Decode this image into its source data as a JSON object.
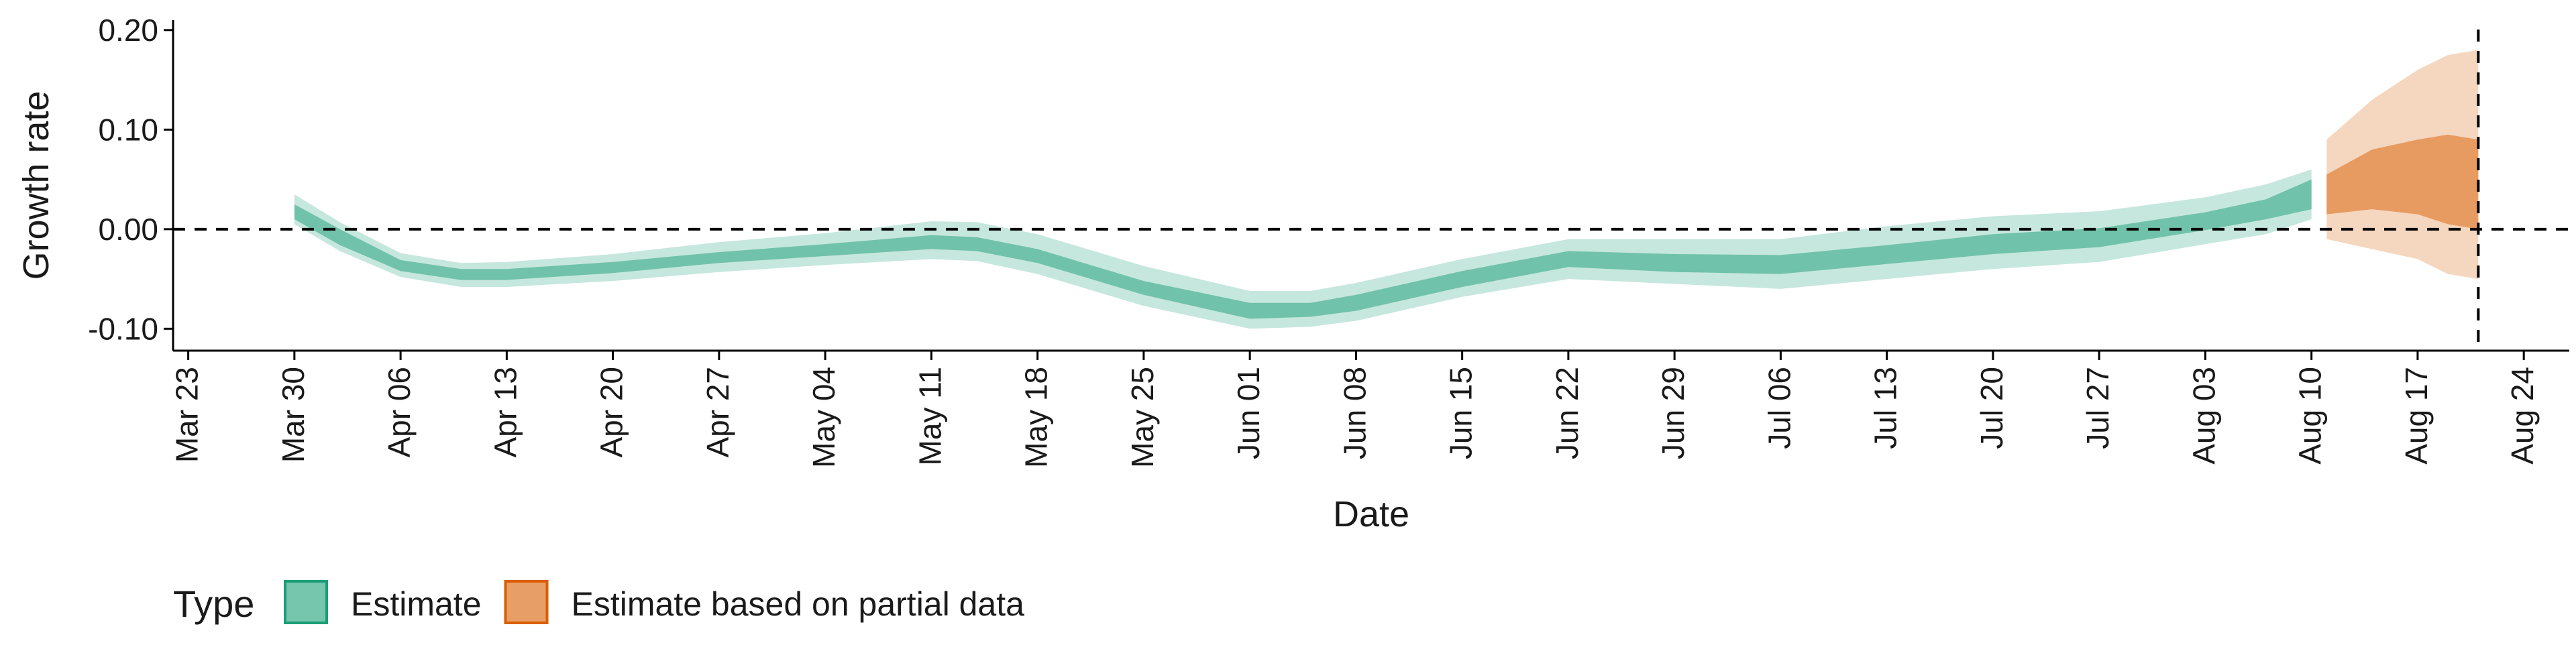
{
  "chart_data": {
    "type": "area",
    "xlabel": "Date",
    "ylabel": "Growth rate",
    "xlim": [
      "2020-03-22",
      "2020-08-27"
    ],
    "ylim": [
      -0.122,
      0.21
    ],
    "y_ticks": [
      {
        "value": 0.2,
        "label": "0.20"
      },
      {
        "value": 0.1,
        "label": "0.10"
      },
      {
        "value": 0.0,
        "label": "0.00"
      },
      {
        "value": -0.1,
        "label": "-0.10"
      }
    ],
    "x_ticks": [
      {
        "date": "2020-03-23",
        "label": "Mar 23"
      },
      {
        "date": "2020-03-30",
        "label": "Mar 30"
      },
      {
        "date": "2020-04-06",
        "label": "Apr 06"
      },
      {
        "date": "2020-04-13",
        "label": "Apr 13"
      },
      {
        "date": "2020-04-20",
        "label": "Apr 20"
      },
      {
        "date": "2020-04-27",
        "label": "Apr 27"
      },
      {
        "date": "2020-05-04",
        "label": "May 04"
      },
      {
        "date": "2020-05-11",
        "label": "May 11"
      },
      {
        "date": "2020-05-18",
        "label": "May 18"
      },
      {
        "date": "2020-05-25",
        "label": "May 25"
      },
      {
        "date": "2020-06-01",
        "label": "Jun 01"
      },
      {
        "date": "2020-06-08",
        "label": "Jun 08"
      },
      {
        "date": "2020-06-15",
        "label": "Jun 15"
      },
      {
        "date": "2020-06-22",
        "label": "Jun 22"
      },
      {
        "date": "2020-06-29",
        "label": "Jun 29"
      },
      {
        "date": "2020-07-06",
        "label": "Jul 06"
      },
      {
        "date": "2020-07-13",
        "label": "Jul 13"
      },
      {
        "date": "2020-07-20",
        "label": "Jul 20"
      },
      {
        "date": "2020-07-27",
        "label": "Jul 27"
      },
      {
        "date": "2020-08-03",
        "label": "Aug 03"
      },
      {
        "date": "2020-08-10",
        "label": "Aug 10"
      },
      {
        "date": "2020-08-17",
        "label": "Aug 17"
      },
      {
        "date": "2020-08-24",
        "label": "Aug 24"
      }
    ],
    "reference_lines": {
      "horizontal_y": 0.0,
      "vertical_date": "2020-08-21"
    },
    "grid": false,
    "legend": {
      "title": "Type",
      "position": "bottom-left",
      "items": [
        {
          "label": "Estimate",
          "color": "#1b9e77"
        },
        {
          "label": "Estimate based on partial data",
          "color": "#d95f02"
        }
      ]
    },
    "series": [
      {
        "name": "Estimate",
        "color": "#1b9e77",
        "points": [
          {
            "date": "2020-03-30",
            "outer": [
              0.005,
              0.035
            ],
            "inner": [
              0.01,
              0.025
            ]
          },
          {
            "date": "2020-04-02",
            "outer": [
              -0.022,
              0.007
            ],
            "inner": [
              -0.016,
              0.0
            ]
          },
          {
            "date": "2020-04-06",
            "outer": [
              -0.048,
              -0.024
            ],
            "inner": [
              -0.042,
              -0.031
            ]
          },
          {
            "date": "2020-04-10",
            "outer": [
              -0.058,
              -0.034
            ],
            "inner": [
              -0.051,
              -0.04
            ]
          },
          {
            "date": "2020-04-13",
            "outer": [
              -0.058,
              -0.033
            ],
            "inner": [
              -0.051,
              -0.04
            ]
          },
          {
            "date": "2020-04-20",
            "outer": [
              -0.052,
              -0.025
            ],
            "inner": [
              -0.044,
              -0.033
            ]
          },
          {
            "date": "2020-04-27",
            "outer": [
              -0.043,
              -0.013
            ],
            "inner": [
              -0.034,
              -0.023
            ]
          },
          {
            "date": "2020-05-04",
            "outer": [
              -0.036,
              -0.004
            ],
            "inner": [
              -0.027,
              -0.015
            ]
          },
          {
            "date": "2020-05-11",
            "outer": [
              -0.03,
              0.008
            ],
            "inner": [
              -0.02,
              -0.006
            ]
          },
          {
            "date": "2020-05-14",
            "outer": [
              -0.032,
              0.007
            ],
            "inner": [
              -0.022,
              -0.008
            ]
          },
          {
            "date": "2020-05-18",
            "outer": [
              -0.045,
              -0.005
            ],
            "inner": [
              -0.034,
              -0.02
            ]
          },
          {
            "date": "2020-05-25",
            "outer": [
              -0.077,
              -0.037
            ],
            "inner": [
              -0.066,
              -0.052
            ]
          },
          {
            "date": "2020-06-01",
            "outer": [
              -0.1,
              -0.062
            ],
            "inner": [
              -0.09,
              -0.074
            ]
          },
          {
            "date": "2020-06-05",
            "outer": [
              -0.098,
              -0.062
            ],
            "inner": [
              -0.088,
              -0.074
            ]
          },
          {
            "date": "2020-06-08",
            "outer": [
              -0.092,
              -0.054
            ],
            "inner": [
              -0.082,
              -0.066
            ]
          },
          {
            "date": "2020-06-15",
            "outer": [
              -0.068,
              -0.03
            ],
            "inner": [
              -0.058,
              -0.042
            ]
          },
          {
            "date": "2020-06-22",
            "outer": [
              -0.05,
              -0.01
            ],
            "inner": [
              -0.038,
              -0.022
            ]
          },
          {
            "date": "2020-06-29",
            "outer": [
              -0.055,
              -0.01
            ],
            "inner": [
              -0.043,
              -0.025
            ]
          },
          {
            "date": "2020-07-06",
            "outer": [
              -0.06,
              -0.01
            ],
            "inner": [
              -0.045,
              -0.026
            ]
          },
          {
            "date": "2020-07-13",
            "outer": [
              -0.05,
              0.003
            ],
            "inner": [
              -0.035,
              -0.016
            ]
          },
          {
            "date": "2020-07-20",
            "outer": [
              -0.04,
              0.013
            ],
            "inner": [
              -0.025,
              -0.005
            ]
          },
          {
            "date": "2020-07-27",
            "outer": [
              -0.033,
              0.018
            ],
            "inner": [
              -0.018,
              0.001
            ]
          },
          {
            "date": "2020-08-03",
            "outer": [
              -0.015,
              0.032
            ],
            "inner": [
              -0.001,
              0.017
            ]
          },
          {
            "date": "2020-08-07",
            "outer": [
              -0.005,
              0.045
            ],
            "inner": [
              0.01,
              0.03
            ]
          },
          {
            "date": "2020-08-10",
            "outer": [
              0.01,
              0.06
            ],
            "inner": [
              0.02,
              0.05
            ]
          }
        ]
      },
      {
        "name": "Estimate based on partial data",
        "color": "#d95f02",
        "points": [
          {
            "date": "2020-08-11",
            "outer": [
              -0.01,
              0.09
            ],
            "inner": [
              0.015,
              0.055
            ]
          },
          {
            "date": "2020-08-14",
            "outer": [
              -0.02,
              0.13
            ],
            "inner": [
              0.02,
              0.08
            ]
          },
          {
            "date": "2020-08-17",
            "outer": [
              -0.03,
              0.16
            ],
            "inner": [
              0.015,
              0.09
            ]
          },
          {
            "date": "2020-08-19",
            "outer": [
              -0.045,
              0.175
            ],
            "inner": [
              0.005,
              0.095
            ]
          },
          {
            "date": "2020-08-21",
            "outer": [
              -0.05,
              0.18
            ],
            "inner": [
              0.0,
              0.09
            ]
          }
        ]
      }
    ]
  }
}
